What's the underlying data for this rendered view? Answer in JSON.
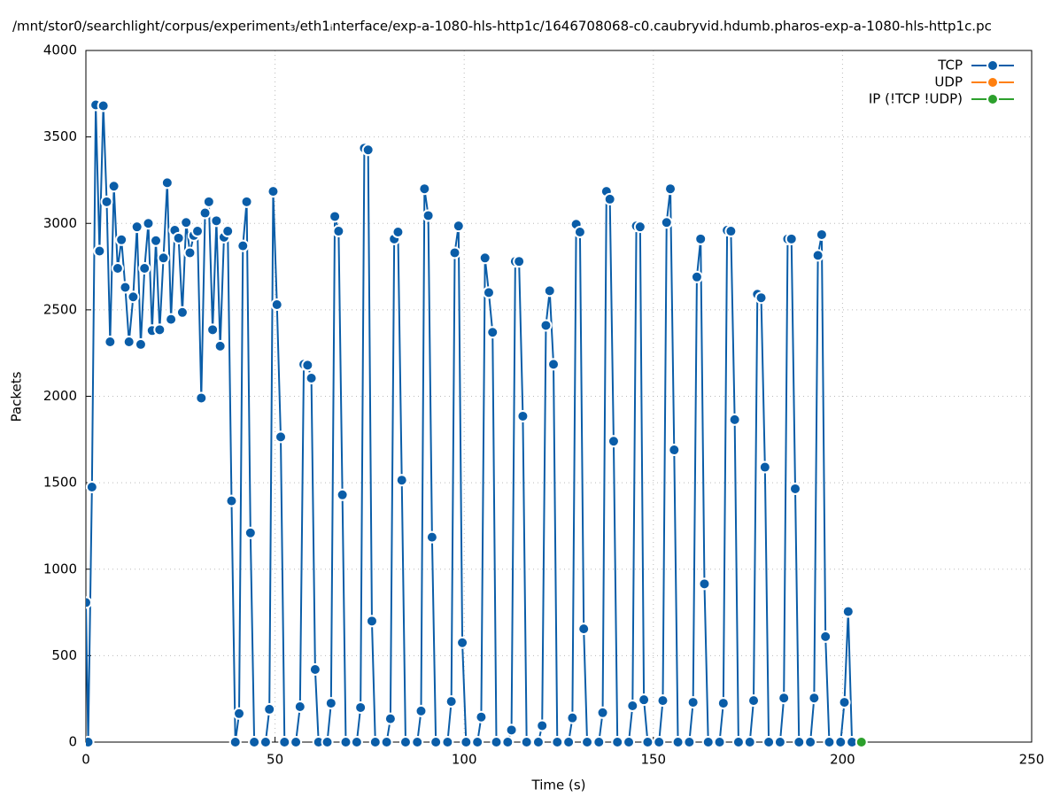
{
  "chart_data": {
    "type": "line",
    "title": "/mnt/stor0/searchlight/corpus/experiment₃/eth1ᵢnterface/exp-a-1080-hls-http1c/1646708068-c0.caubryvid.hdumb.pharos-exp-a-1080-hls-http1c.pc",
    "xlabel": "Time (s)",
    "ylabel": "Packets",
    "xlim": [
      0,
      250
    ],
    "xticks": [
      0,
      50,
      100,
      150,
      200,
      250
    ],
    "ylim": [
      0,
      4000
    ],
    "yticks": [
      0,
      500,
      1000,
      1500,
      2000,
      2500,
      3000,
      3500,
      4000
    ],
    "grid": true,
    "legend": "upper right",
    "series": [
      {
        "name": "TCP",
        "color": "#0a5da8",
        "x": [
          0,
          0.6,
          1.6,
          2.6,
          3.6,
          4.6,
          5.5,
          6.4,
          7.4,
          8.4,
          9.4,
          10.4,
          11.4,
          12.5,
          13.5,
          14.5,
          15.5,
          16.5,
          17.5,
          18.5,
          19.5,
          20.5,
          21.5,
          22.5,
          23.5,
          24.5,
          25.5,
          26.5,
          27.5,
          28.5,
          29.5,
          30.5,
          31.5,
          32.5,
          33.5,
          34.5,
          35.5,
          36.5,
          37.5,
          38.5,
          39.5,
          40.5,
          41.5,
          42.5,
          43.5,
          44.5,
          47.5,
          48.5,
          49.5,
          50.5,
          51.5,
          52.5,
          55.5,
          56.6,
          57.6,
          58.6,
          59.6,
          60.6,
          61.5,
          63.8,
          64.8,
          65.8,
          66.8,
          67.8,
          68.7,
          71.6,
          72.6,
          73.6,
          74.6,
          75.6,
          76.5,
          79.5,
          80.5,
          81.5,
          82.5,
          83.5,
          84.5,
          87.6,
          88.6,
          89.5,
          90.5,
          91.5,
          92.5,
          95.6,
          96.6,
          97.5,
          98.5,
          99.5,
          100.5,
          103.5,
          104.5,
          105.5,
          106.5,
          107.5,
          108.5,
          111.5,
          112.5,
          113.5,
          114.5,
          115.5,
          116.5,
          119.6,
          120.6,
          121.6,
          122.6,
          123.6,
          124.6,
          127.6,
          128.6,
          129.6,
          130.6,
          131.6,
          132.5,
          135.6,
          136.6,
          137.6,
          138.5,
          139.5,
          140.5,
          143.5,
          144.5,
          145.5,
          146.5,
          147.5,
          148.5,
          151.5,
          152.5,
          153.5,
          154.5,
          155.5,
          156.5,
          159.5,
          160.5,
          161.5,
          162.5,
          163.5,
          164.5,
          167.5,
          168.5,
          169.5,
          170.5,
          171.5,
          172.5,
          175.5,
          176.5,
          177.5,
          178.5,
          179.5,
          180.5,
          183.5,
          184.5,
          185.5,
          186.5,
          187.5,
          188.5,
          191.5,
          192.5,
          193.5,
          194.5,
          195.5,
          196.5,
          199.5,
          200.5,
          201.5,
          202.5
        ],
        "values": [
          807,
          0,
          1475,
          3685,
          2840,
          3680,
          3125,
          2315,
          3215,
          2740,
          2905,
          2630,
          2315,
          2575,
          2980,
          2300,
          2740,
          3000,
          2380,
          2900,
          2385,
          2800,
          3235,
          2445,
          2960,
          2915,
          2485,
          3005,
          2830,
          2930,
          2955,
          1990,
          3060,
          3125,
          2385,
          3015,
          2290,
          2920,
          2955,
          1395,
          0,
          165,
          2870,
          3125,
          1210,
          0,
          0,
          190,
          3185,
          2530,
          1765,
          0,
          0,
          205,
          2185,
          2180,
          2105,
          420,
          0,
          0,
          225,
          3040,
          2955,
          1430,
          0,
          0,
          200,
          3435,
          3425,
          700,
          0,
          0,
          135,
          2910,
          2950,
          1515,
          0,
          0,
          180,
          3200,
          3045,
          1185,
          0,
          0,
          235,
          2830,
          2985,
          575,
          0,
          0,
          145,
          2800,
          2600,
          2370,
          0,
          0,
          70,
          2780,
          2780,
          1885,
          0,
          0,
          95,
          2410,
          2610,
          2185,
          0,
          0,
          140,
          2995,
          2950,
          655,
          0,
          0,
          170,
          3185,
          3140,
          1740,
          0,
          0,
          210,
          2985,
          2980,
          245,
          0,
          0,
          240,
          3005,
          3200,
          1690,
          0,
          0,
          230,
          2690,
          2910,
          915,
          0,
          0,
          225,
          2960,
          2955,
          1865,
          0,
          0,
          240,
          2590,
          2570,
          1590,
          0,
          0,
          255,
          2910,
          2910,
          1465,
          0,
          0,
          255,
          2815,
          2935,
          610,
          0,
          0,
          230,
          755,
          0
        ]
      },
      {
        "name": "UDP",
        "color": "#ff7f0e",
        "x": [],
        "values": []
      },
      {
        "name": "IP (!TCP  !UDP)",
        "color": "#2ca02c",
        "x": [
          205
        ],
        "values": [
          0
        ]
      }
    ]
  }
}
